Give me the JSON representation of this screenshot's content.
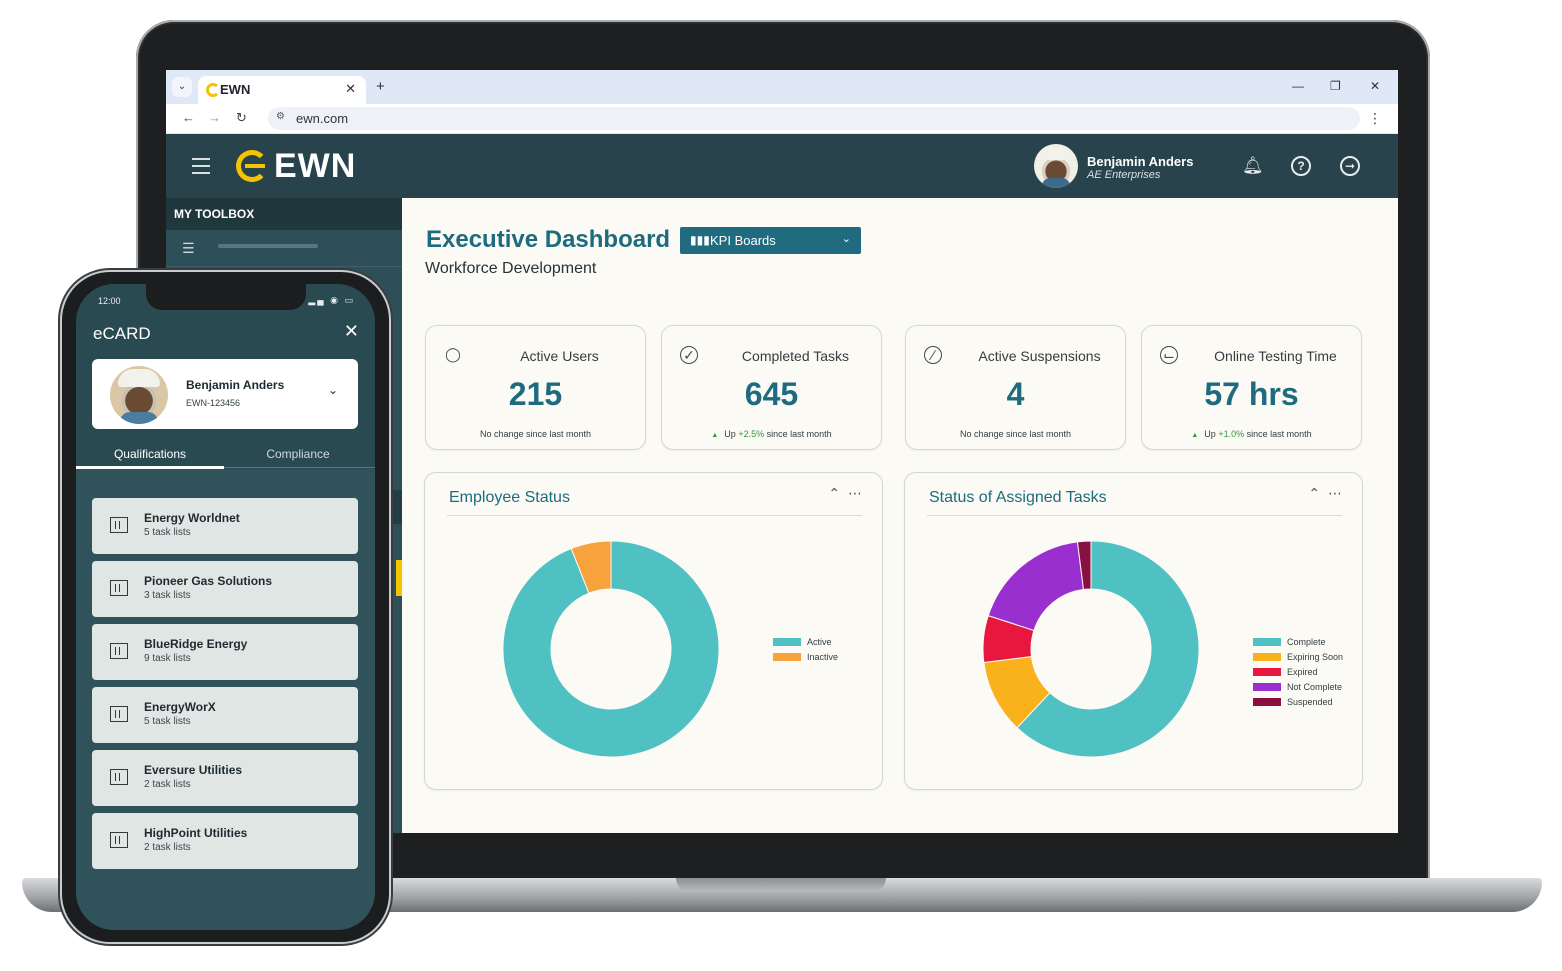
{
  "browser": {
    "tab_title": "EWN",
    "url": "ewn.com"
  },
  "header": {
    "brand": "EWN",
    "user_name": "Benjamin Anders",
    "user_org": "AE Enterprises"
  },
  "sidebar": {
    "section_title": "MY TOOLBOX"
  },
  "dashboard": {
    "title": "Executive Dashboard",
    "subtitle": "Workforce Development",
    "board_select": "KPI Boards",
    "stats": [
      {
        "label": "Active Users",
        "value": "215",
        "note": "No change since last month",
        "icon": "user-icon"
      },
      {
        "label": "Completed Tasks",
        "value": "645",
        "note_prefix": "Up ",
        "change": "+2.5%",
        "note_suffix": " since last month",
        "icon": "check-circle-icon"
      },
      {
        "label": "Active Suspensions",
        "value": "4",
        "note": "No change since last month",
        "icon": "slash-circle-icon"
      },
      {
        "label": "Online Testing Time",
        "value": "57 hrs",
        "note_prefix": "Up ",
        "change": "+1.0%",
        "note_suffix": " since last month",
        "icon": "clock-icon"
      }
    ]
  },
  "chart_data": [
    {
      "type": "pie",
      "title": "Employee Status",
      "categories": [
        "Active",
        "Inactive"
      ],
      "values": [
        94,
        6
      ],
      "colors": [
        "#4fc1c3",
        "#f7a23c"
      ],
      "legend": "right"
    },
    {
      "type": "pie",
      "title": "Status of Assigned Tasks",
      "categories": [
        "Complete",
        "Expiring Soon",
        "Expired",
        "Not Complete",
        "Suspended"
      ],
      "values": [
        62,
        11,
        7,
        18,
        2
      ],
      "colors": [
        "#4fc1c3",
        "#f9b11c",
        "#e8173f",
        "#9a2fd0",
        "#8a1042"
      ],
      "legend": "right"
    }
  ],
  "phone": {
    "time": "12:00",
    "title": "eCARD",
    "profile_name": "Benjamin Anders",
    "profile_id": "EWN-123456",
    "tabs": [
      "Qualifications",
      "Compliance"
    ],
    "orgs": [
      {
        "name": "Energy Worldnet",
        "count": "5 task lists"
      },
      {
        "name": "Pioneer Gas Solutions",
        "count": "3 task lists"
      },
      {
        "name": "BlueRidge Energy",
        "count": "9 task lists"
      },
      {
        "name": "EnergyWorX",
        "count": "5 task lists"
      },
      {
        "name": "Eversure Utilities",
        "count": "2 task lists"
      },
      {
        "name": "HighPoint Utilities",
        "count": "2 task lists"
      }
    ]
  },
  "colors": {
    "header_bg": "#28434c",
    "accent": "#1e6b80",
    "brand_yellow": "#f4c400"
  }
}
